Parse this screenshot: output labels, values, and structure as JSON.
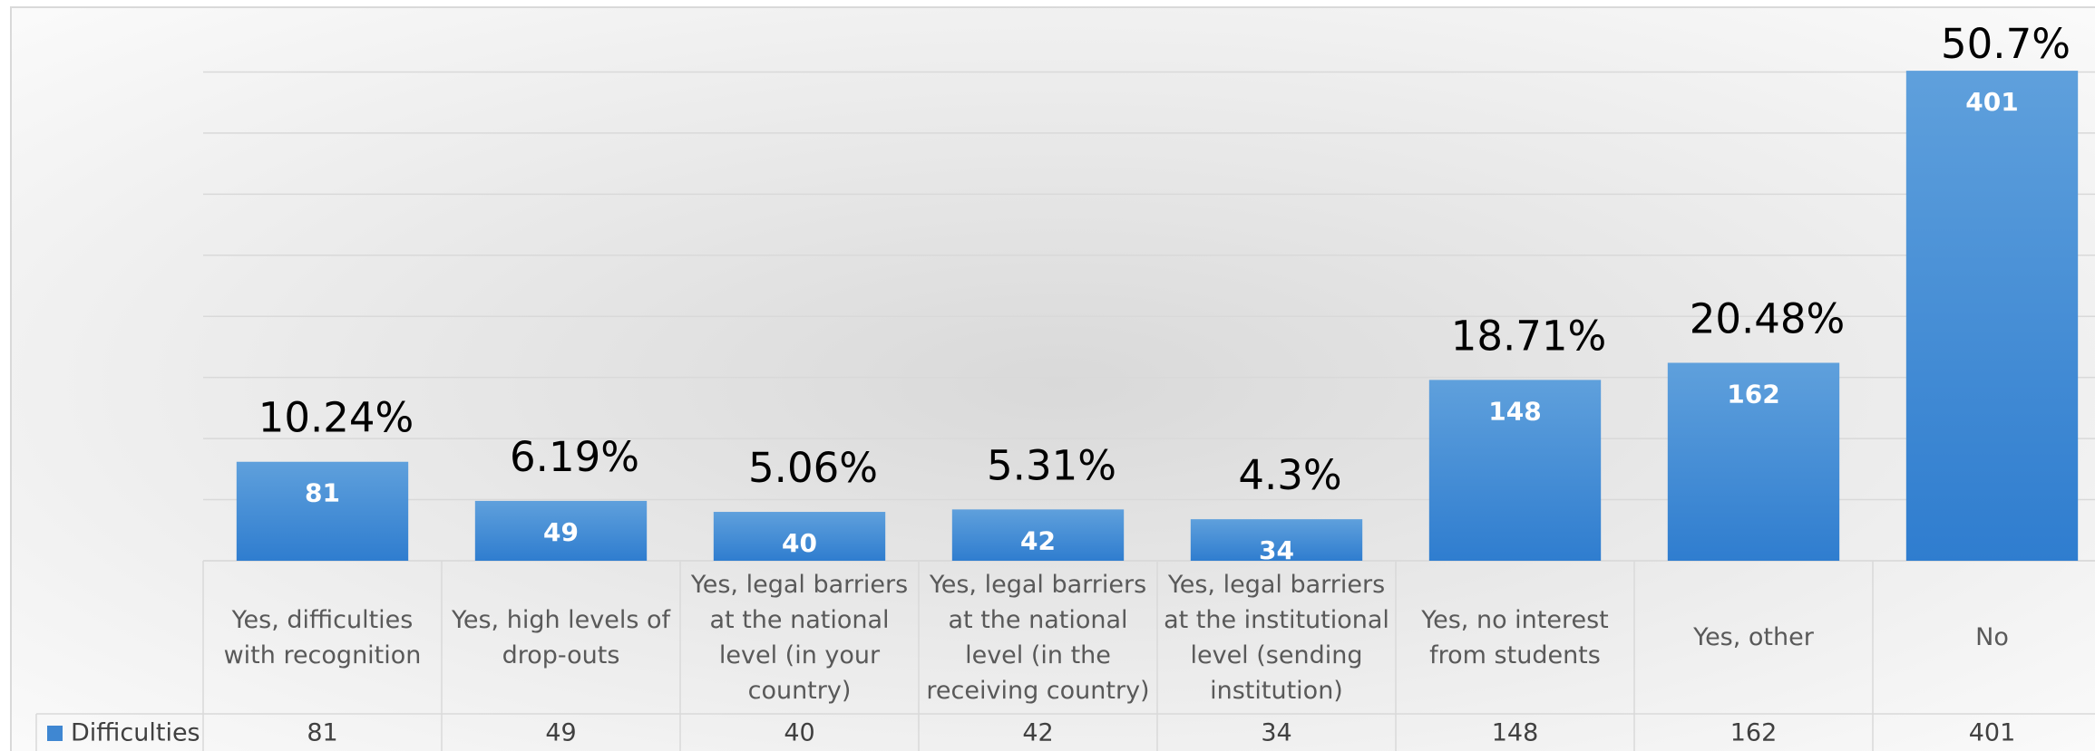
{
  "chart_data": {
    "type": "bar",
    "categories": [
      "Yes, difficulties with recognition",
      "Yes, high levels of drop-outs",
      "Yes, legal barriers at the national level (in your country)",
      "Yes, legal barriers at the national level (in the receiving country)",
      "Yes, legal barriers at the institutional level (sending institution)",
      "Yes, no interest from students",
      "Yes, other",
      "No"
    ],
    "series": [
      {
        "name": "Difficulties",
        "color": "#3f87d2",
        "values": [
          81,
          49,
          40,
          42,
          34,
          148,
          162,
          401
        ]
      }
    ],
    "annotations": [
      "10.24%",
      "6.19%",
      "5.06%",
      "5.31%",
      "4.3%",
      "18.71%",
      "20.48%",
      "50.7%"
    ],
    "ylim": [
      0,
      450
    ],
    "yticks": [
      0,
      50,
      100,
      150,
      200,
      250,
      300,
      350,
      400
    ],
    "grid": true
  }
}
